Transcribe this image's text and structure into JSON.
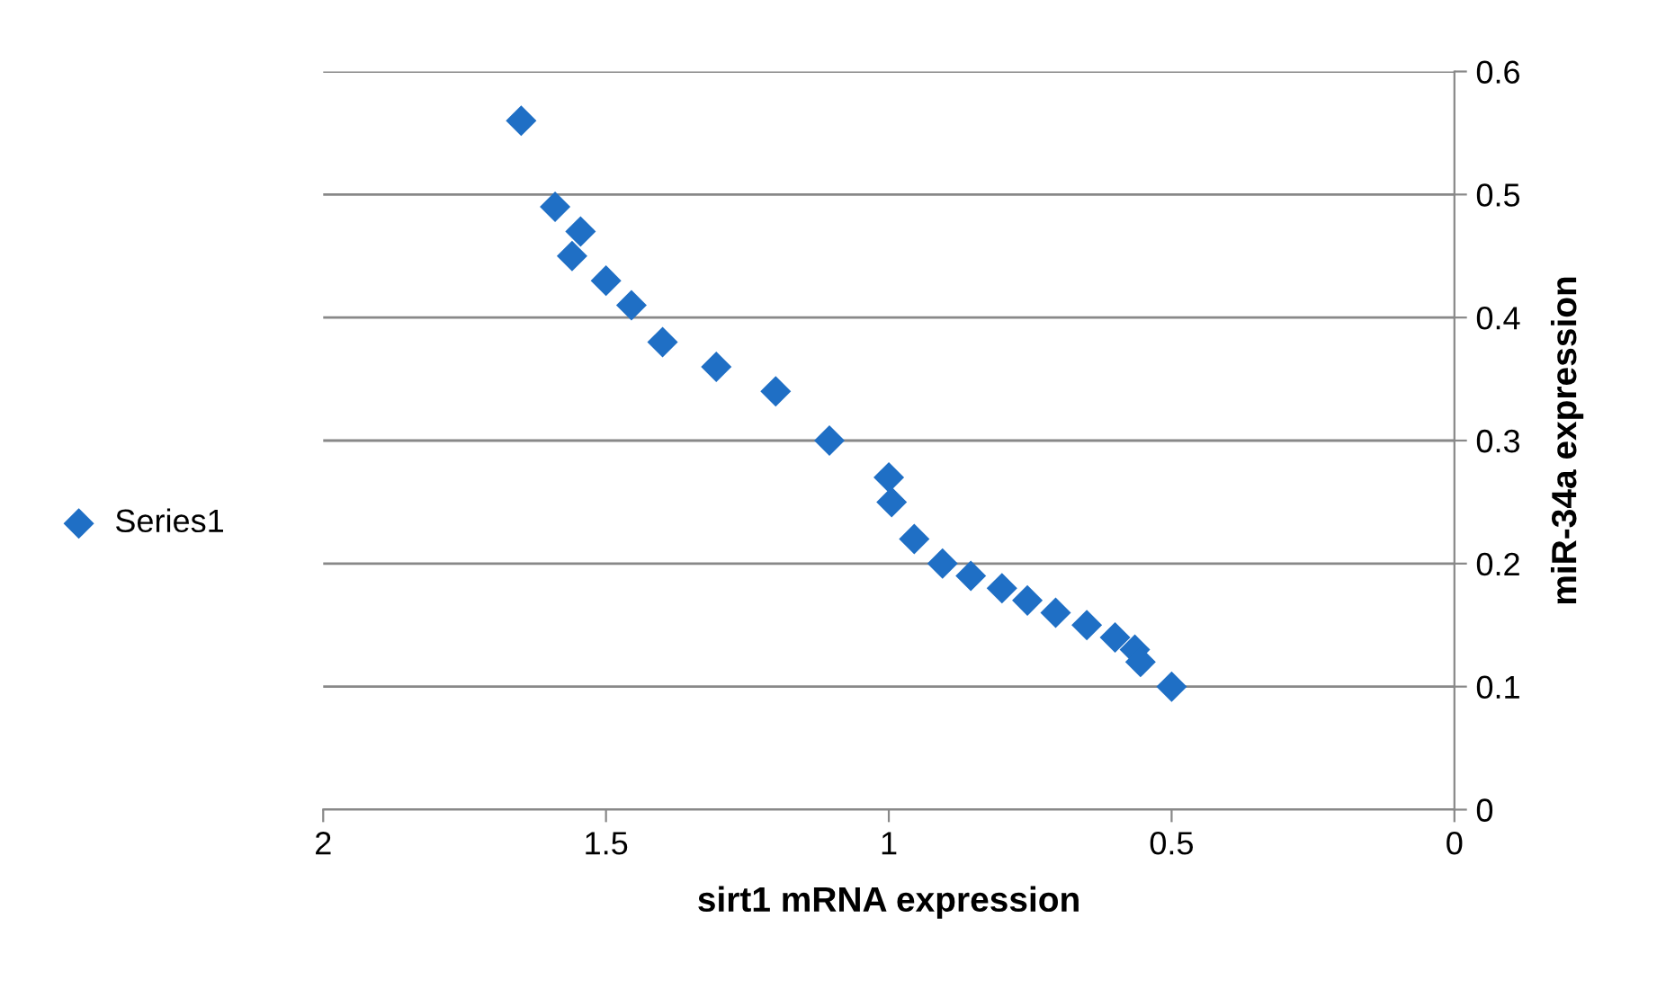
{
  "chart_data": {
    "type": "scatter",
    "xlabel": "sirt1 mRNA expression",
    "ylabel": "miR-34a expression",
    "x": [
      1.65,
      1.59,
      1.545,
      1.56,
      1.5,
      1.455,
      1.4,
      1.305,
      1.2,
      1.105,
      1.0,
      0.995,
      0.955,
      0.905,
      0.855,
      0.8,
      0.755,
      0.705,
      0.65,
      0.6,
      0.565,
      0.555,
      0.5
    ],
    "series": [
      {
        "name": "Series1",
        "color": "#1f6fc5",
        "values": [
          0.56,
          0.49,
          0.47,
          0.45,
          0.43,
          0.41,
          0.38,
          0.36,
          0.34,
          0.3,
          0.27,
          0.25,
          0.22,
          0.2,
          0.19,
          0.18,
          0.17,
          0.16,
          0.15,
          0.14,
          0.13,
          0.12,
          0.1
        ]
      }
    ],
    "xlim": [
      2,
      0
    ],
    "xticks": [
      2,
      1.5,
      1,
      0.5,
      0
    ],
    "ylim": [
      0,
      0.6
    ],
    "yticks": [
      0,
      0.1,
      0.2,
      0.3,
      0.4,
      0.5,
      0.6
    ],
    "grid": "y",
    "legend": "left",
    "marker": "diamond"
  }
}
